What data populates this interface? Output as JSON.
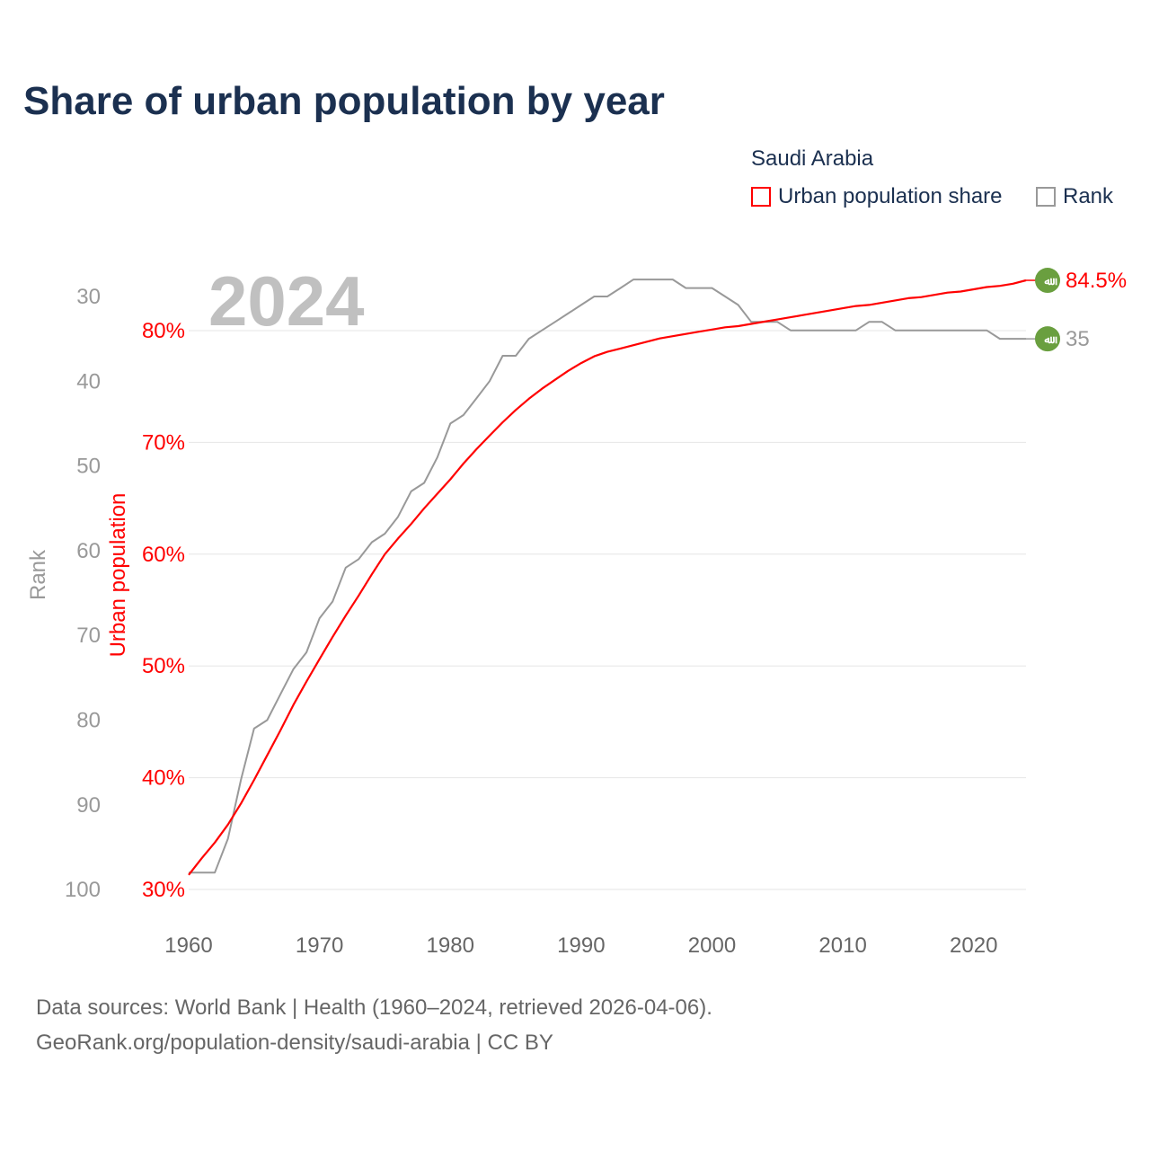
{
  "title": "Share of urban population by year",
  "legend": {
    "country": "Saudi Arabia",
    "items": [
      {
        "label": "Urban population share",
        "color": "#ff0000"
      },
      {
        "label": "Rank",
        "color": "#999999"
      }
    ]
  },
  "source": {
    "line1": "Data sources: World Bank | Health (1960–2024, retrieved 2026-04-06).",
    "line2": "GeoRank.org/population-density/saudi-arabia | CC BY"
  },
  "chart_data": {
    "type": "line",
    "title": "Share of urban population by year",
    "watermark_year": "2024",
    "x": [
      1960,
      1961,
      1962,
      1963,
      1964,
      1965,
      1966,
      1967,
      1968,
      1969,
      1970,
      1971,
      1972,
      1973,
      1974,
      1975,
      1976,
      1977,
      1978,
      1979,
      1980,
      1981,
      1982,
      1983,
      1984,
      1985,
      1986,
      1987,
      1988,
      1989,
      1990,
      1991,
      1992,
      1993,
      1994,
      1995,
      1996,
      1997,
      1998,
      1999,
      2000,
      2001,
      2002,
      2003,
      2004,
      2005,
      2006,
      2007,
      2008,
      2009,
      2010,
      2011,
      2012,
      2013,
      2014,
      2015,
      2016,
      2017,
      2018,
      2019,
      2020,
      2021,
      2022,
      2023,
      2024
    ],
    "xticks": [
      "1960",
      "1970",
      "1980",
      "1990",
      "2000",
      "2010",
      "2020"
    ],
    "xlim": [
      1960,
      2024
    ],
    "series": [
      {
        "name": "Urban population share",
        "axis": "left-inner",
        "color": "#ff0000",
        "end_label": "84.5%",
        "values": [
          31.3,
          32.8,
          34.2,
          35.8,
          37.7,
          39.8,
          42.0,
          44.2,
          46.5,
          48.6,
          50.6,
          52.6,
          54.5,
          56.3,
          58.2,
          60.0,
          61.4,
          62.7,
          64.1,
          65.4,
          66.7,
          68.1,
          69.4,
          70.6,
          71.8,
          72.9,
          73.9,
          74.8,
          75.6,
          76.4,
          77.1,
          77.7,
          78.1,
          78.4,
          78.7,
          79.0,
          79.3,
          79.5,
          79.7,
          79.9,
          80.1,
          80.3,
          80.4,
          80.6,
          80.8,
          81.0,
          81.2,
          81.4,
          81.6,
          81.8,
          82.0,
          82.2,
          82.3,
          82.5,
          82.7,
          82.9,
          83.0,
          83.2,
          83.4,
          83.5,
          83.7,
          83.9,
          84.0,
          84.2,
          84.5
        ]
      },
      {
        "name": "Rank",
        "axis": "left-outer",
        "color": "#999999",
        "end_label": "35",
        "values": [
          98,
          98,
          98,
          94,
          87,
          81,
          80,
          77,
          74,
          72,
          68,
          66,
          62,
          61,
          59,
          58,
          56,
          53,
          52,
          49,
          45,
          44,
          42,
          40,
          37,
          37,
          35,
          34,
          33,
          32,
          31,
          30,
          30,
          29,
          28,
          28,
          28,
          28,
          29,
          29,
          29,
          30,
          31,
          33,
          33,
          33,
          34,
          34,
          34,
          34,
          34,
          34,
          33,
          33,
          34,
          34,
          34,
          34,
          34,
          34,
          34,
          34,
          35,
          35,
          35
        ]
      }
    ],
    "y_urban": {
      "label": "Urban population",
      "ticks": [
        "30%",
        "40%",
        "50%",
        "60%",
        "70%",
        "80%"
      ],
      "ylim": [
        30,
        85
      ]
    },
    "y_rank": {
      "label": "Rank",
      "ticks": [
        "30",
        "40",
        "50",
        "60",
        "70",
        "80",
        "90",
        "100"
      ],
      "ylim": [
        100,
        30
      ],
      "inverted": true
    },
    "grid": true,
    "legend_position": "top-right"
  }
}
